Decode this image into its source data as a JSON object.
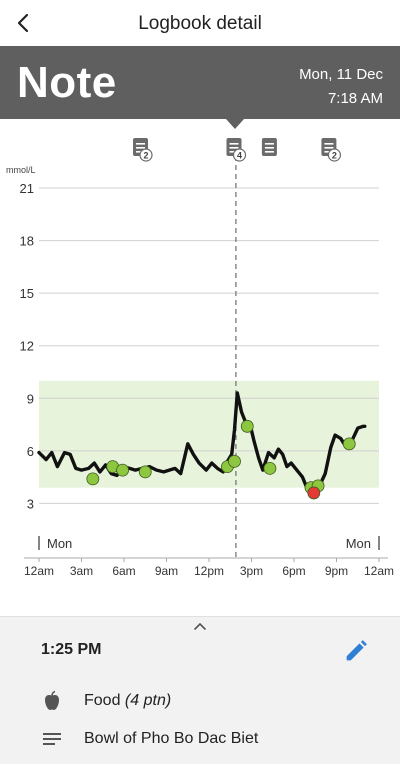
{
  "header": {
    "title": "Logbook detail"
  },
  "banner": {
    "type": "Note",
    "date": "Mon, 11 Dec",
    "time": "7:18 AM"
  },
  "chart_data": {
    "type": "line",
    "ylabel": "mmol/L",
    "yticks": [
      3,
      6,
      9,
      12,
      15,
      18,
      21
    ],
    "ylim": [
      0,
      21
    ],
    "target_range": [
      3.9,
      10.0
    ],
    "xticks": [
      "12am",
      "3am",
      "6am",
      "9am",
      "12pm",
      "3pm",
      "6pm",
      "9pm",
      "12am"
    ],
    "xlim_hours": [
      0,
      24
    ],
    "day_labels": {
      "left": "Mon",
      "right": "Mon"
    },
    "selected_hour": 13.9,
    "grid": true,
    "series": [
      {
        "line": [
          [
            0,
            5.9
          ],
          [
            0.5,
            5.5
          ],
          [
            0.9,
            5.9
          ],
          [
            1.3,
            5.1
          ],
          [
            1.8,
            5.9
          ],
          [
            2.2,
            5.8
          ],
          [
            2.6,
            5.0
          ],
          [
            3.0,
            4.9
          ],
          [
            3.5,
            5.0
          ],
          [
            3.9,
            5.3
          ],
          [
            4.3,
            4.8
          ],
          [
            4.7,
            5.2
          ],
          [
            5.1,
            4.7
          ],
          [
            5.5,
            4.6
          ],
          [
            5.9,
            5.1
          ],
          [
            6.4,
            5.0
          ],
          [
            6.8,
            4.9
          ],
          [
            7.3,
            5.0
          ],
          [
            7.8,
            5.1
          ],
          [
            8.3,
            4.9
          ],
          [
            8.8,
            4.8
          ],
          [
            9.2,
            4.9
          ],
          [
            9.6,
            5.0
          ],
          [
            10.0,
            4.7
          ],
          [
            10.5,
            6.4
          ],
          [
            10.9,
            5.8
          ],
          [
            11.3,
            5.3
          ],
          [
            11.8,
            4.9
          ],
          [
            12.2,
            5.3
          ],
          [
            12.6,
            5.0
          ],
          [
            13.0,
            4.8
          ],
          [
            13.3,
            5.4
          ],
          [
            13.6,
            5.8
          ],
          [
            13.8,
            7.2
          ],
          [
            14.0,
            9.3
          ],
          [
            14.3,
            8.2
          ],
          [
            14.6,
            7.6
          ],
          [
            14.9,
            7.5
          ],
          [
            15.2,
            6.5
          ],
          [
            15.5,
            5.6
          ],
          [
            15.8,
            4.9
          ],
          [
            16.2,
            5.9
          ],
          [
            16.6,
            5.6
          ],
          [
            16.9,
            6.1
          ],
          [
            17.2,
            5.8
          ],
          [
            17.5,
            5.1
          ],
          [
            17.8,
            5.3
          ],
          [
            18.2,
            4.9
          ],
          [
            18.6,
            4.5
          ],
          [
            18.9,
            3.9
          ],
          [
            19.1,
            3.7
          ],
          [
            19.4,
            3.8
          ],
          [
            19.8,
            4.0
          ],
          [
            20.2,
            4.7
          ],
          [
            20.6,
            6.2
          ],
          [
            20.9,
            6.9
          ],
          [
            21.3,
            6.7
          ],
          [
            21.7,
            6.2
          ],
          [
            22.1,
            6.6
          ],
          [
            22.5,
            7.3
          ],
          [
            22.9,
            7.4
          ],
          [
            23.0,
            7.4
          ]
        ]
      }
    ],
    "readings": [
      {
        "hour": 3.8,
        "value": 4.4,
        "color": "#8dc63f"
      },
      {
        "hour": 5.2,
        "value": 5.1,
        "color": "#8dc63f"
      },
      {
        "hour": 5.9,
        "value": 4.9,
        "color": "#8dc63f"
      },
      {
        "hour": 7.5,
        "value": 4.8,
        "color": "#8dc63f"
      },
      {
        "hour": 13.3,
        "value": 5.1,
        "color": "#8dc63f"
      },
      {
        "hour": 13.8,
        "value": 5.4,
        "color": "#8dc63f"
      },
      {
        "hour": 14.7,
        "value": 7.4,
        "color": "#8dc63f"
      },
      {
        "hour": 16.3,
        "value": 5.0,
        "color": "#8dc63f"
      },
      {
        "hour": 19.2,
        "value": 3.9,
        "color": "#8dc63f"
      },
      {
        "hour": 19.7,
        "value": 4.0,
        "color": "#8dc63f"
      },
      {
        "hour": 19.4,
        "value": 3.6,
        "color": "#e53935"
      },
      {
        "hour": 21.9,
        "value": 6.4,
        "color": "#8dc63f"
      }
    ],
    "note_markers": [
      {
        "hour": 7.2,
        "badge": "2",
        "selected": false
      },
      {
        "hour": 13.8,
        "badge": "4",
        "selected": true
      },
      {
        "hour": 16.3,
        "badge": "",
        "selected": false
      },
      {
        "hour": 20.5,
        "badge": "2",
        "selected": false
      }
    ],
    "colors": {
      "line": "#111111",
      "target": "#e8f3dc",
      "grid": "#d0d0d0",
      "marker_icon": "#6b6b6b"
    }
  },
  "detail": {
    "time": "1:25 PM",
    "food_label": "Food",
    "food_portion": "(4 ptn)",
    "note_text": "Bowl of Pho Bo Dac Biet",
    "accent": "#2f7fd6"
  }
}
